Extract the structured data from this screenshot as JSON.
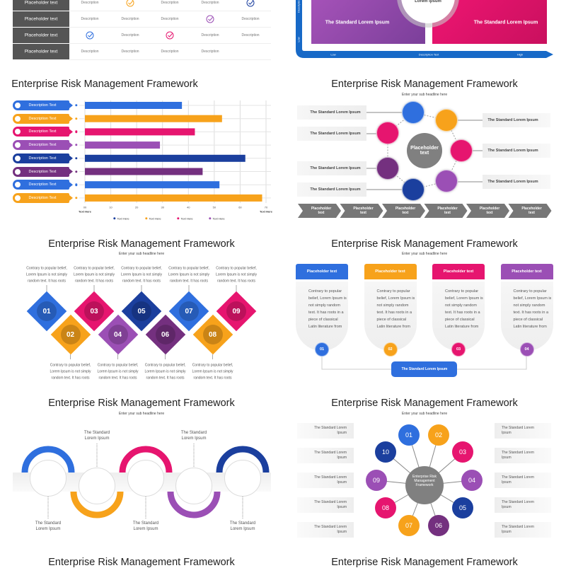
{
  "colors": {
    "blue": "#2f6fde",
    "orange": "#f7a21b",
    "pink": "#e6156f",
    "purple": "#9b4fb5",
    "navy": "#1b3f9e",
    "darkpurple": "#74307f",
    "gray": "#808080"
  },
  "common": {
    "title": "Enterprise Risk Management Framework",
    "subtitle": "Enter your sub headline here"
  },
  "table": {
    "rows": [
      {
        "label": "Placeholder text",
        "cells": [
          "Description",
          "check:orange",
          "Description",
          "Description",
          "check:navy"
        ]
      },
      {
        "label": "Placeholder text",
        "cells": [
          "Description",
          "Description",
          "Description",
          "check:purple",
          "Description"
        ]
      },
      {
        "label": "Placeholder text",
        "cells": [
          "check:blue",
          "Description",
          "check:pink",
          "Description",
          "Description"
        ]
      },
      {
        "label": "Placeholder text",
        "cells": [
          "Description",
          "Description",
          "Description",
          "Description",
          ""
        ]
      }
    ]
  },
  "matrix": {
    "center": "Lorem Ipsum",
    "boxes": [
      "The Standard Lorem Ipsum",
      "The Standard Lorem Ipsum"
    ],
    "y_low": "Low",
    "y_label": "Description",
    "x_low": "Low",
    "x_label": "Description Text",
    "x_high": "High"
  },
  "chart_data": {
    "type": "bar",
    "orientation": "horizontal",
    "title": "Enterprise Risk Management Framework",
    "categories": [
      "Description Text",
      "Description Text",
      "Description Text",
      "Description Text",
      "Description Text",
      "Description Text",
      "Description Text",
      "Description Text"
    ],
    "values": [
      37.5,
      53,
      42.5,
      29,
      62,
      45.5,
      52,
      68.5
    ],
    "bar_colors": [
      "blue",
      "orange",
      "pink",
      "purple",
      "navy",
      "darkpurple",
      "blue",
      "orange"
    ],
    "xticks": [
      "00",
      "10",
      "20",
      "30",
      "40",
      "50",
      "60",
      "70"
    ],
    "xlim": [
      0,
      70
    ],
    "xlabel_left": "Text Here",
    "xlabel_right": "Text Here",
    "legend": [
      {
        "label": "Text Here",
        "color": "navy"
      },
      {
        "label": "Text Here",
        "color": "orange"
      },
      {
        "label": "Text Here",
        "color": "pink"
      },
      {
        "label": "Text Here",
        "color": "purple"
      }
    ],
    "legend_placement": "bottom"
  },
  "cycle": {
    "center": "Placeholder text",
    "left_labels": [
      "The Standard Lorem Ipsum",
      "The Standard Lorem Ipsum",
      "The Standard Lorem Ipsum",
      "The Standard Lorem Ipsum"
    ],
    "right_labels": [
      "The Standard Lorem Ipsum",
      "The Standard Lorem Ipsum",
      "The Standard Lorem Ipsum"
    ],
    "chevrons": [
      "Placeholder text",
      "Placeholder text",
      "Placeholder text",
      "Placeholder text",
      "Placeholder text",
      "Placeholder text"
    ],
    "icons": [
      "monitor-chart-icon",
      "org-chart-icon",
      "bar-chart-icon",
      "team-icon",
      "magnifier-chart-icon",
      "bank-icon",
      "document-edit-icon"
    ]
  },
  "diamonds": {
    "text": "Contrary to popular belief, Lorem Ipsum is not simply random text. It has roots",
    "numbers": [
      "01",
      "02",
      "03",
      "04",
      "05",
      "06",
      "07",
      "08",
      "09"
    ]
  },
  "cards": {
    "items": [
      {
        "header": "Placeholder text",
        "body": "Contrary to popular belief, Lorem Ipsum is not simply random text. It has roots in a piece of classical Latin literature from",
        "num": "01"
      },
      {
        "header": "Placeholder text",
        "body": "Contrary to popular belief, Lorem Ipsum is not simply random text. It has roots in a piece of classical Latin literature from",
        "num": "02"
      },
      {
        "header": "Placeholder text",
        "body": "Contrary to popular belief, Lorem Ipsum is not simply random text. It has roots in a piece of classical Latin literature from",
        "num": "03"
      },
      {
        "header": "Placeholder text",
        "body": "Contrary to popular belief, Lorem Ipsum is not simply random text. It has roots in a piece of classical Latin literature from",
        "num": "04"
      }
    ],
    "button": "The Standard Lorem Ipsum"
  },
  "arcs": {
    "label": "The Standard Lorem Ipsum",
    "icons": [
      "team-meeting-icon",
      "idea-hands-icon",
      "gear-cycle-icon",
      "leader-icon",
      "network-hand-icon"
    ]
  },
  "hub": {
    "center": "Enterprise Risk Management Framework",
    "numbers": [
      "01",
      "02",
      "03",
      "04",
      "05",
      "06",
      "07",
      "08",
      "09",
      "10"
    ],
    "label": "The Standard Lorem Ipsum"
  }
}
